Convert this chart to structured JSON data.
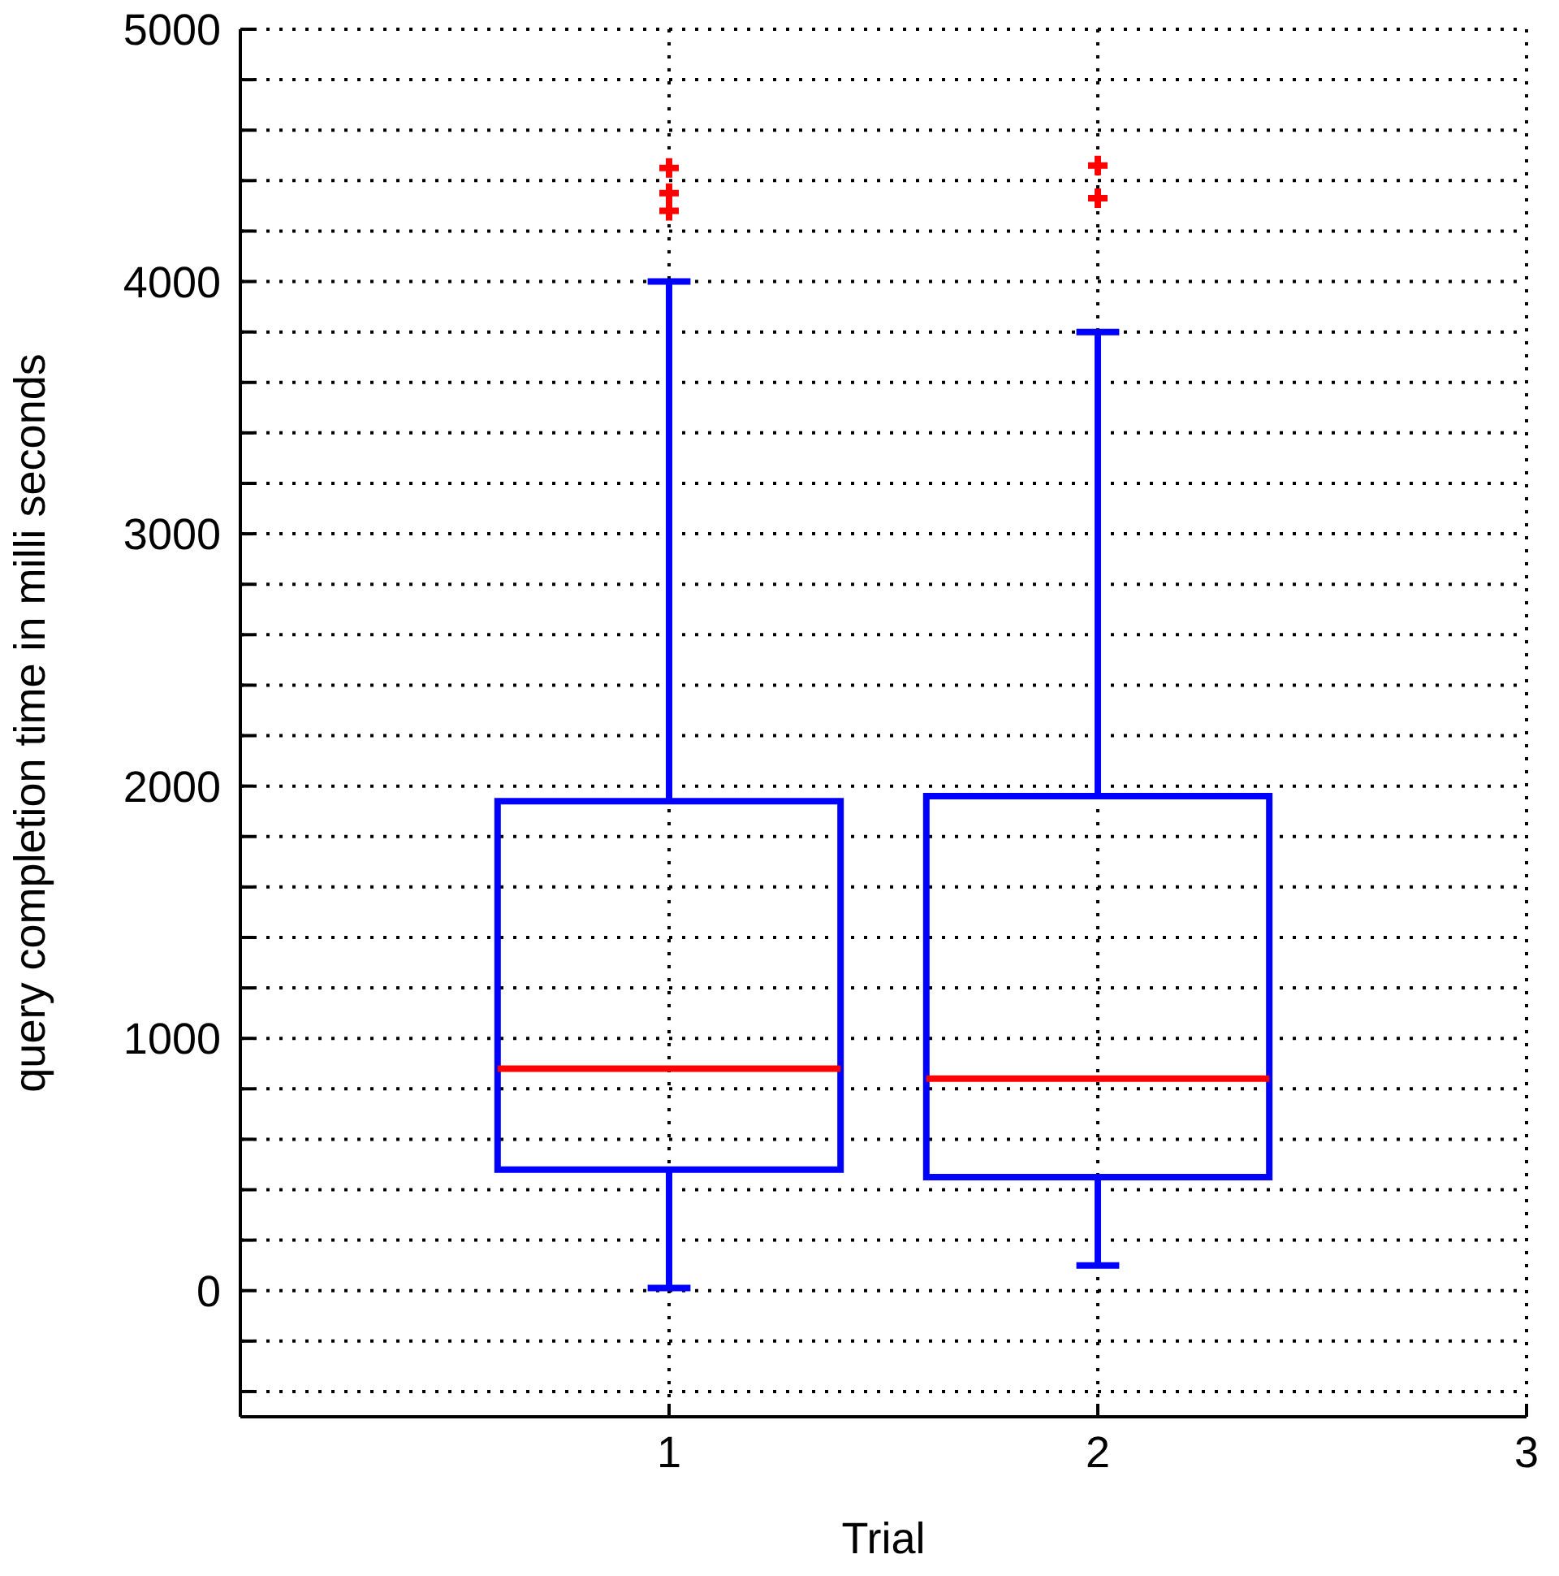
{
  "chart_data": {
    "type": "box",
    "xlabel": "Trial",
    "ylabel": "query completion time in milli seconds",
    "categories": [
      "1",
      "2",
      "3"
    ],
    "ylim": [
      -500,
      5000
    ],
    "yticks": [
      {
        "value": -400,
        "label": null
      },
      {
        "value": -200,
        "label": null
      },
      0,
      {
        "value": 200,
        "label": null
      },
      {
        "value": 400,
        "label": null
      },
      {
        "value": 600,
        "label": null
      },
      {
        "value": 800,
        "label": null
      },
      1000,
      {
        "value": 1200,
        "label": null
      },
      {
        "value": 1400,
        "label": null
      },
      {
        "value": 1600,
        "label": null
      },
      {
        "value": 1800,
        "label": null
      },
      2000,
      {
        "value": 2200,
        "label": null
      },
      {
        "value": 2400,
        "label": null
      },
      {
        "value": 2600,
        "label": null
      },
      {
        "value": 2800,
        "label": null
      },
      3000,
      {
        "value": 3200,
        "label": null
      },
      {
        "value": 3400,
        "label": null
      },
      {
        "value": 3600,
        "label": null
      },
      {
        "value": 3800,
        "label": null
      },
      4000,
      {
        "value": 4200,
        "label": null
      },
      {
        "value": 4400,
        "label": null
      },
      {
        "value": 4600,
        "label": null
      },
      {
        "value": 4800,
        "label": null
      },
      5000
    ],
    "grid": true,
    "series": [
      {
        "color": "#0000ff",
        "boxes": [
          {
            "low": 10,
            "q1": 480,
            "median": 880,
            "q3": 1940,
            "high": 4000,
            "outliers": [
              4450,
              4350,
              4280
            ]
          },
          {
            "low": 100,
            "q1": 450,
            "median": 840,
            "q3": 1960,
            "high": 3800,
            "outliers": [
              4460,
              4330
            ]
          },
          null
        ]
      }
    ]
  }
}
